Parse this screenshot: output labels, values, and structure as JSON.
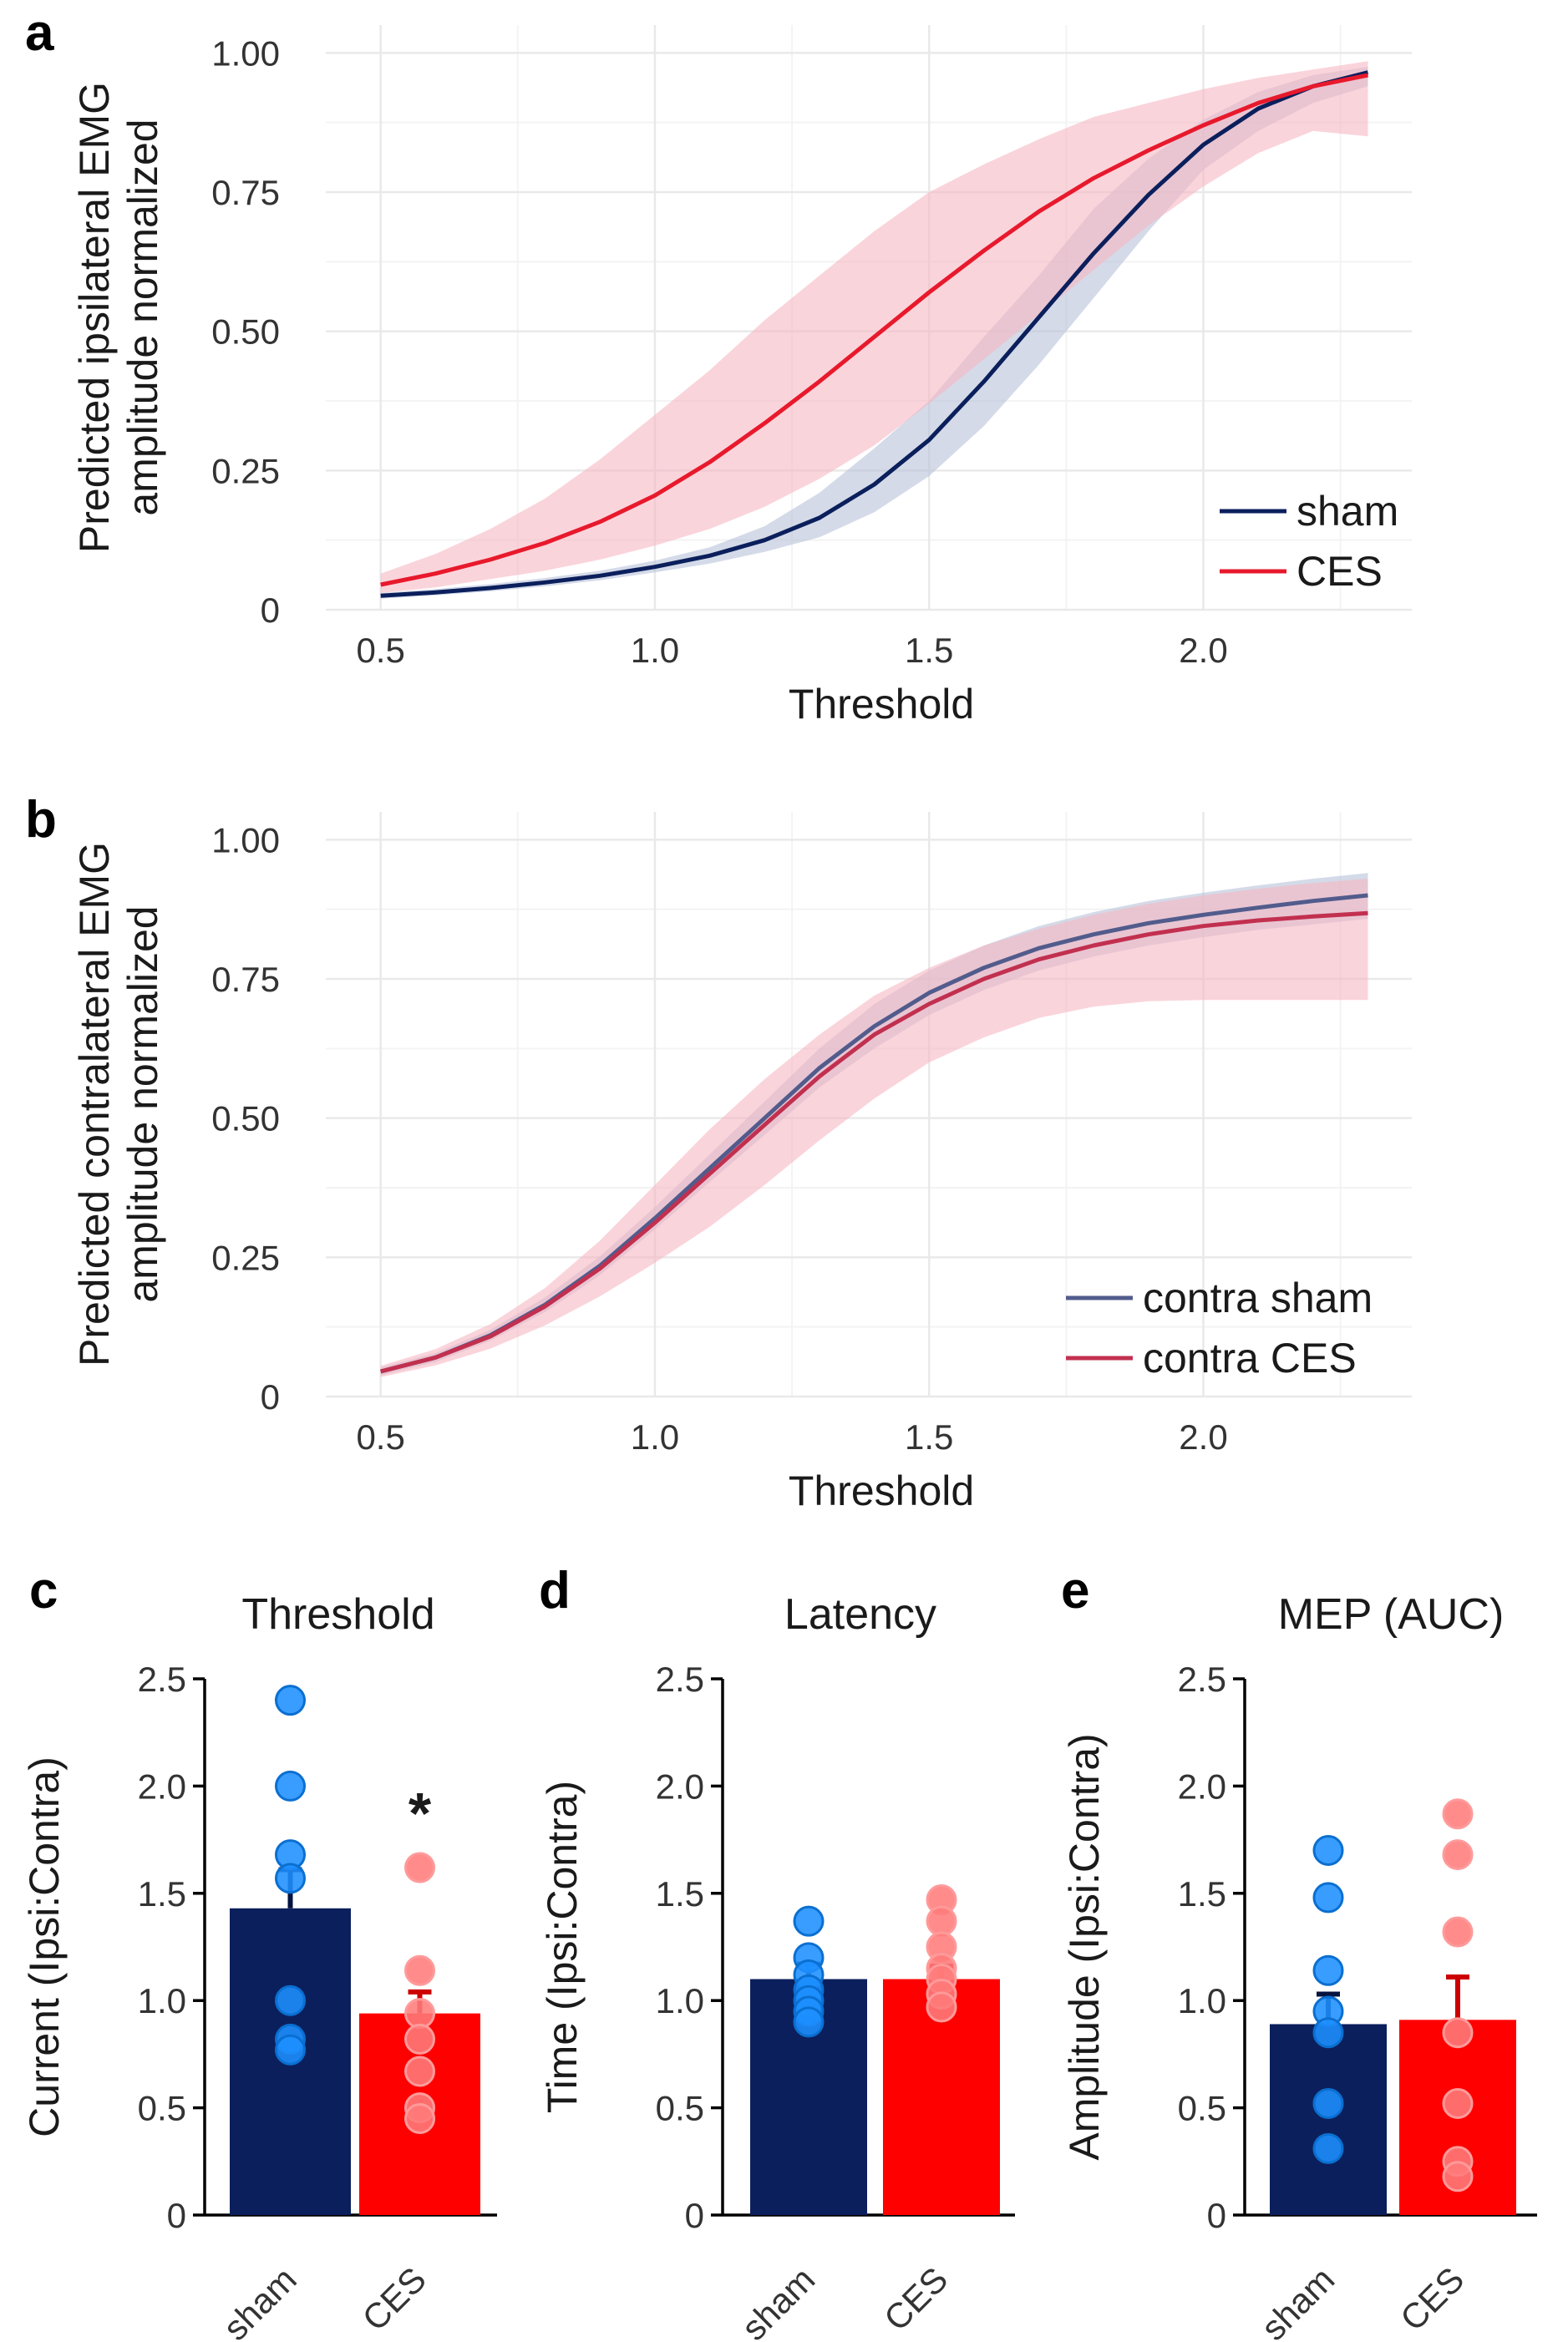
{
  "colors": {
    "sham": "#0b1f5c",
    "ces": "#e8192c",
    "sham_band": "#b8c2d8",
    "ces_band": "#f6b8c3",
    "contra_sham": "#525c8c",
    "contra_ces": "#c2304f",
    "bar_sham": "#0b1f5c",
    "bar_ces": "#ff0000",
    "dot_sham": "#1e90ff",
    "dot_ces": "#ff7b7b"
  },
  "chart_data": [
    {
      "id": "a",
      "panel_label": "a",
      "type": "line",
      "xlabel": "Threshold",
      "ylabel_lines": [
        "Predicted ipsilateral EMG",
        "amplitude normalized"
      ],
      "xlim": [
        0.4,
        2.38
      ],
      "ylim": [
        0,
        1.05
      ],
      "xticks": [
        0.5,
        1.0,
        1.5,
        2.0
      ],
      "xtick_labels": [
        "0.5",
        "1.0",
        "1.5",
        "2.0"
      ],
      "yticks": [
        0,
        0.25,
        0.5,
        0.75,
        1.0
      ],
      "ytick_labels": [
        "0",
        "0.25",
        "0.50",
        "0.75",
        "1.00"
      ],
      "legend_position": "bottom-right",
      "x": [
        0.5,
        0.6,
        0.7,
        0.8,
        0.9,
        1.0,
        1.1,
        1.2,
        1.3,
        1.4,
        1.5,
        1.6,
        1.7,
        1.8,
        1.9,
        2.0,
        2.1,
        2.2,
        2.3
      ],
      "series": [
        {
          "name": "sham",
          "color_key": "sham",
          "band_key": "sham_band",
          "values": [
            0.025,
            0.031,
            0.039,
            0.049,
            0.061,
            0.077,
            0.097,
            0.125,
            0.165,
            0.225,
            0.305,
            0.41,
            0.525,
            0.64,
            0.745,
            0.835,
            0.9,
            0.94,
            0.965
          ],
          "lower": [
            0.02,
            0.026,
            0.033,
            0.042,
            0.053,
            0.067,
            0.083,
            0.104,
            0.13,
            0.175,
            0.24,
            0.33,
            0.44,
            0.56,
            0.68,
            0.79,
            0.86,
            0.91,
            0.94
          ],
          "upper": [
            0.03,
            0.037,
            0.046,
            0.057,
            0.07,
            0.088,
            0.112,
            0.15,
            0.21,
            0.29,
            0.375,
            0.49,
            0.6,
            0.72,
            0.81,
            0.88,
            0.93,
            0.96,
            0.975
          ]
        },
        {
          "name": "CES",
          "color_key": "ces",
          "band_key": "ces_band",
          "values": [
            0.045,
            0.065,
            0.09,
            0.12,
            0.158,
            0.205,
            0.265,
            0.335,
            0.41,
            0.49,
            0.57,
            0.645,
            0.715,
            0.775,
            0.825,
            0.87,
            0.91,
            0.94,
            0.96
          ],
          "lower": [
            0.03,
            0.04,
            0.055,
            0.07,
            0.09,
            0.115,
            0.145,
            0.185,
            0.235,
            0.295,
            0.37,
            0.45,
            0.53,
            0.61,
            0.69,
            0.76,
            0.82,
            0.86,
            0.85
          ],
          "upper": [
            0.065,
            0.1,
            0.145,
            0.2,
            0.27,
            0.35,
            0.43,
            0.52,
            0.6,
            0.68,
            0.75,
            0.8,
            0.845,
            0.885,
            0.91,
            0.935,
            0.955,
            0.97,
            0.985
          ]
        }
      ]
    },
    {
      "id": "b",
      "panel_label": "b",
      "type": "line",
      "xlabel": "Threshold",
      "ylabel_lines": [
        "Predicted contralateral EMG",
        "amplitude normalized"
      ],
      "xlim": [
        0.4,
        2.38
      ],
      "ylim": [
        0,
        1.05
      ],
      "xticks": [
        0.5,
        1.0,
        1.5,
        2.0
      ],
      "xtick_labels": [
        "0.5",
        "1.0",
        "1.5",
        "2.0"
      ],
      "yticks": [
        0,
        0.25,
        0.5,
        0.75,
        1.0
      ],
      "ytick_labels": [
        "0",
        "0.25",
        "0.50",
        "0.75",
        "1.00"
      ],
      "legend_position": "bottom-right",
      "x": [
        0.5,
        0.6,
        0.7,
        0.8,
        0.9,
        1.0,
        1.1,
        1.2,
        1.3,
        1.4,
        1.5,
        1.6,
        1.7,
        1.8,
        1.9,
        2.0,
        2.1,
        2.2,
        2.3
      ],
      "series": [
        {
          "name": "contra sham",
          "color_key": "contra_sham",
          "band_key": "sham_band",
          "values": [
            0.045,
            0.07,
            0.11,
            0.165,
            0.235,
            0.32,
            0.41,
            0.5,
            0.59,
            0.665,
            0.725,
            0.77,
            0.805,
            0.83,
            0.85,
            0.865,
            0.878,
            0.89,
            0.9
          ],
          "lower": [
            0.038,
            0.062,
            0.1,
            0.152,
            0.218,
            0.3,
            0.385,
            0.47,
            0.555,
            0.625,
            0.685,
            0.73,
            0.765,
            0.79,
            0.81,
            0.825,
            0.838,
            0.848,
            0.858
          ],
          "upper": [
            0.052,
            0.078,
            0.12,
            0.178,
            0.252,
            0.34,
            0.435,
            0.53,
            0.625,
            0.705,
            0.765,
            0.81,
            0.845,
            0.87,
            0.89,
            0.905,
            0.918,
            0.93,
            0.94
          ]
        },
        {
          "name": "contra CES",
          "color_key": "contra_ces",
          "band_key": "ces_band",
          "values": [
            0.045,
            0.07,
            0.108,
            0.162,
            0.23,
            0.312,
            0.4,
            0.488,
            0.575,
            0.65,
            0.705,
            0.75,
            0.785,
            0.81,
            0.83,
            0.845,
            0.855,
            0.862,
            0.868
          ],
          "lower": [
            0.035,
            0.056,
            0.086,
            0.128,
            0.18,
            0.24,
            0.305,
            0.38,
            0.46,
            0.535,
            0.6,
            0.645,
            0.68,
            0.7,
            0.71,
            0.712,
            0.712,
            0.712,
            0.712
          ],
          "upper": [
            0.055,
            0.085,
            0.13,
            0.195,
            0.28,
            0.38,
            0.48,
            0.57,
            0.65,
            0.72,
            0.77,
            0.81,
            0.84,
            0.865,
            0.885,
            0.9,
            0.912,
            0.922,
            0.93
          ]
        }
      ]
    },
    {
      "id": "c",
      "panel_label": "c",
      "type": "bar",
      "title": "Threshold",
      "ylabel": "Current (Ipsi:Contra)",
      "ylim": [
        0,
        2.5
      ],
      "yticks": [
        0,
        0.5,
        1.0,
        1.5,
        2.0,
        2.5
      ],
      "ytick_labels": [
        "0",
        "0.5",
        "1.0",
        "1.5",
        "2.0",
        "2.5"
      ],
      "categories": [
        "sham",
        "CES"
      ],
      "values": [
        1.43,
        0.94
      ],
      "errors": [
        0.18,
        0.1
      ],
      "annotation": "*",
      "points": [
        [
          2.4,
          2.0,
          1.68,
          1.57,
          1.0,
          0.82,
          0.77
        ],
        [
          1.62,
          1.14,
          0.94,
          0.82,
          0.67,
          0.5,
          0.45
        ]
      ]
    },
    {
      "id": "d",
      "panel_label": "d",
      "type": "bar",
      "title": "Latency",
      "ylabel": "Time (Ipsi:Contra)",
      "ylim": [
        0,
        2.5
      ],
      "yticks": [
        0,
        0.5,
        1.0,
        1.5,
        2.0,
        2.5
      ],
      "ytick_labels": [
        "0",
        "0.5",
        "1.0",
        "1.5",
        "2.0",
        "2.5"
      ],
      "categories": [
        "sham",
        "CES"
      ],
      "values": [
        1.1,
        1.1
      ],
      "errors": [
        0.07,
        0.06
      ],
      "annotation": "",
      "points": [
        [
          1.37,
          1.2,
          1.12,
          1.05,
          1.0,
          0.95,
          0.9
        ],
        [
          1.47,
          1.37,
          1.25,
          1.15,
          1.1,
          1.03,
          0.97
        ]
      ]
    },
    {
      "id": "e",
      "panel_label": "e",
      "type": "bar",
      "title": "MEP (AUC)",
      "ylabel": "Amplitude (Ipsi:Contra)",
      "ylim": [
        0,
        2.5
      ],
      "yticks": [
        0,
        0.5,
        1.0,
        1.5,
        2.0,
        2.5
      ],
      "ytick_labels": [
        "0",
        "0.5",
        "1.0",
        "1.5",
        "2.0",
        "2.5"
      ],
      "categories": [
        "sham",
        "CES"
      ],
      "values": [
        0.89,
        0.91
      ],
      "errors": [
        0.14,
        0.2
      ],
      "annotation": "",
      "points": [
        [
          1.7,
          1.48,
          1.14,
          0.95,
          0.85,
          0.52,
          0.31
        ],
        [
          1.87,
          1.68,
          1.32,
          0.85,
          0.52,
          0.25,
          0.18
        ]
      ]
    }
  ]
}
